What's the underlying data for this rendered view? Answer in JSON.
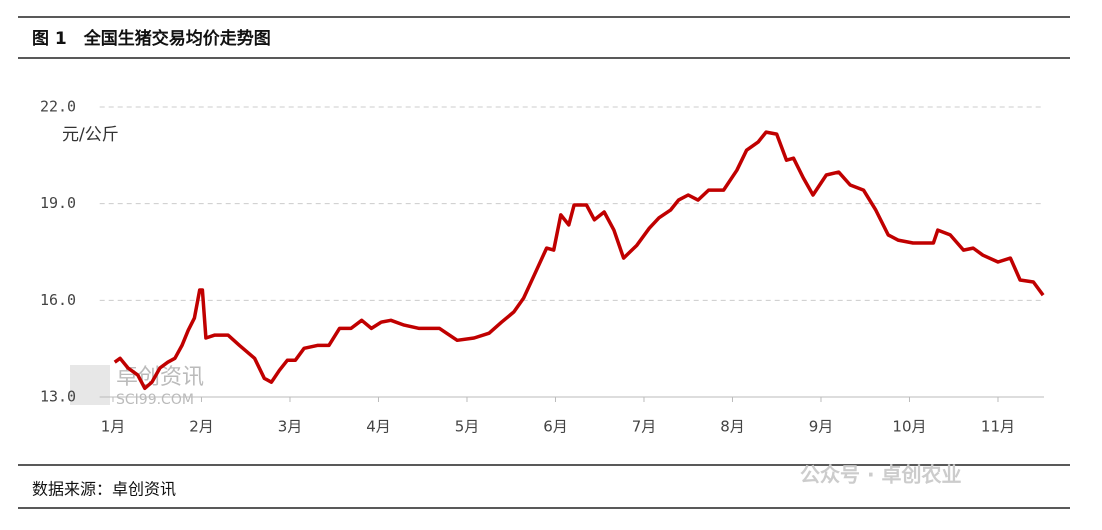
{
  "chart_data": {
    "type": "line",
    "title": "图 1　全国生猪交易均价走势图",
    "y_label": "元/公斤",
    "source": "数据来源：卓创资讯",
    "watermark": "卓创资讯",
    "watermark_sub": "SCI99.COM",
    "footer_watermark": "公众号 · 卓创农业",
    "xlim": [
      0.85,
      11.52
    ],
    "xticks": [
      {
        "value": 1,
        "label": "1月"
      },
      {
        "value": 2,
        "label": "2月"
      },
      {
        "value": 3,
        "label": "3月"
      },
      {
        "value": 4,
        "label": "4月"
      },
      {
        "value": 5,
        "label": "5月"
      },
      {
        "value": 6,
        "label": "6月"
      },
      {
        "value": 7,
        "label": "7月"
      },
      {
        "value": 8,
        "label": "8月"
      },
      {
        "value": 9,
        "label": "9月"
      },
      {
        "value": 10,
        "label": "10月"
      },
      {
        "value": 11,
        "label": "11月"
      }
    ],
    "ylim": [
      13,
      22
    ],
    "yticks": [
      {
        "value": 13,
        "label": "13.0"
      },
      {
        "value": 16,
        "label": "16.0"
      },
      {
        "value": 19,
        "label": "19.0"
      },
      {
        "value": 22,
        "label": "22.0"
      }
    ],
    "grid": true,
    "series": [
      {
        "color": "#c00000",
        "x": [
          1.02,
          1.08,
          1.17,
          1.28,
          1.36,
          1.44,
          1.53,
          1.62,
          1.7,
          1.78,
          1.85,
          1.92,
          1.98,
          2.01,
          2.05,
          2.15,
          2.3,
          2.43,
          2.6,
          2.71,
          2.79,
          2.88,
          2.97,
          3.06,
          3.16,
          3.31,
          3.44,
          3.56,
          3.69,
          3.81,
          3.92,
          4.03,
          4.14,
          4.29,
          4.46,
          4.69,
          4.89,
          5.08,
          5.25,
          5.39,
          5.53,
          5.64,
          5.76,
          5.9,
          5.98,
          6.06,
          6.15,
          6.21,
          6.35,
          6.44,
          6.55,
          6.66,
          6.77,
          6.92,
          7.06,
          7.17,
          7.3,
          7.39,
          7.5,
          7.61,
          7.73,
          7.9,
          8.05,
          8.16,
          8.29,
          8.38,
          8.5,
          8.61,
          8.69,
          8.8,
          8.91,
          9.06,
          9.2,
          9.33,
          9.48,
          9.62,
          9.76,
          9.87,
          10.04,
          10.27,
          10.32,
          10.46,
          10.61,
          10.72,
          10.83,
          11.0,
          11.14,
          11.25,
          11.4,
          11.51
        ],
        "values": [
          14.08,
          14.2,
          13.9,
          13.68,
          13.27,
          13.46,
          13.9,
          14.08,
          14.2,
          14.6,
          15.07,
          15.45,
          16.32,
          16.32,
          14.83,
          14.92,
          14.92,
          14.6,
          14.2,
          13.58,
          13.46,
          13.83,
          14.14,
          14.14,
          14.51,
          14.6,
          14.6,
          15.13,
          15.13,
          15.38,
          15.13,
          15.32,
          15.38,
          15.23,
          15.13,
          15.13,
          14.76,
          14.83,
          14.98,
          15.32,
          15.64,
          16.07,
          16.78,
          17.62,
          17.56,
          18.65,
          18.34,
          18.96,
          18.96,
          18.5,
          18.74,
          18.18,
          17.31,
          17.71,
          18.24,
          18.56,
          18.8,
          19.11,
          19.27,
          19.11,
          19.42,
          19.42,
          20.04,
          20.66,
          20.91,
          21.22,
          21.16,
          20.35,
          20.41,
          19.8,
          19.27,
          19.89,
          19.98,
          19.58,
          19.42,
          18.8,
          18.03,
          17.87,
          17.78,
          17.78,
          18.18,
          18.03,
          17.56,
          17.62,
          17.4,
          17.19,
          17.31,
          16.63,
          16.57,
          16.16
        ]
      }
    ]
  }
}
